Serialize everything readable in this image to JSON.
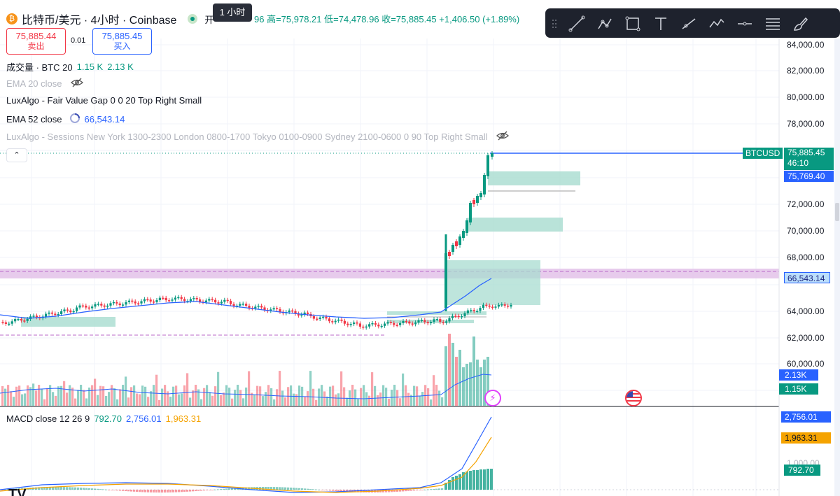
{
  "header": {
    "symbol_title": "比特币/美元 · 4小时 · Coinbase",
    "tooltip": "1 小时",
    "ohlc_open_label": "开",
    "ohlc_open_value": "96",
    "ohlc_high": "高=75,978.21",
    "ohlc_low": "低=74,478.96",
    "ohlc_close": "收=75,885.45",
    "ohlc_change": "+1,406.50 (+1.89%)"
  },
  "trade": {
    "sell_price": "75,885.44",
    "sell_label": "卖出",
    "spread": "0.01",
    "buy_price": "75,885.45",
    "buy_label": "买入"
  },
  "legend": {
    "volume_label": "成交量 · BTC 20",
    "volume_v1": "1.15 K",
    "volume_v2": "2.13 K",
    "ema20": "EMA 20 close",
    "fvg": "LuxAlgo - Fair Value Gap 0 0 20 Top Right Small",
    "ema52_label": "EMA 52 close",
    "ema52_value": "66,543.14",
    "sessions": "LuxAlgo - Sessions New York 1300-2300 London 0800-1700 Tokyo 0100-0900 Sydney 2100-0600 0 90 Top Right Small",
    "macd_label": "MACD close 12 26 9",
    "macd_v1": "792.70",
    "macd_v2": "2,756.01",
    "macd_v3": "1,963.31"
  },
  "axis": {
    "ticks": [
      "84,000.00",
      "82,000.00",
      "80,000.00",
      "78,000.00",
      "72,000.00",
      "70,000.00",
      "68,000.00",
      "64,000.00",
      "62,000.00",
      "60,000.00"
    ],
    "macd_tick": "1,000.00"
  },
  "tags": {
    "symbol": "BTCUSD",
    "last_price": "75,885.45",
    "countdown": "46:10",
    "fvg_price": "75,769.40",
    "ema_price": "66,543.14",
    "vol_a": "2.13K",
    "vol_b": "1.15K",
    "macd_a": "2,756.01",
    "macd_b": "1,963.31",
    "macd_c": "792.70"
  },
  "toolbar": {
    "items": [
      "drag-handle-icon",
      "trend-line-icon",
      "multi-point-icon",
      "rectangle-icon",
      "text-icon",
      "ray-icon",
      "polyline-icon",
      "horizontal-line-icon",
      "fib-icon",
      "brush-icon"
    ]
  },
  "colors": {
    "up": "#089981",
    "down": "#f23645",
    "ema": "#2962ff",
    "fvg": "#a8dcd0",
    "session": "#e1bee7",
    "signal": "#f5a300"
  },
  "chart_data": {
    "type": "candlestick",
    "price_range": [
      59000,
      85000
    ],
    "last_price": 75885.45,
    "ema52": 66543.14,
    "volume_last": [
      2130,
      1150
    ],
    "macd": {
      "macd": 2756.01,
      "signal": 1963.31,
      "hist": 792.7
    }
  }
}
